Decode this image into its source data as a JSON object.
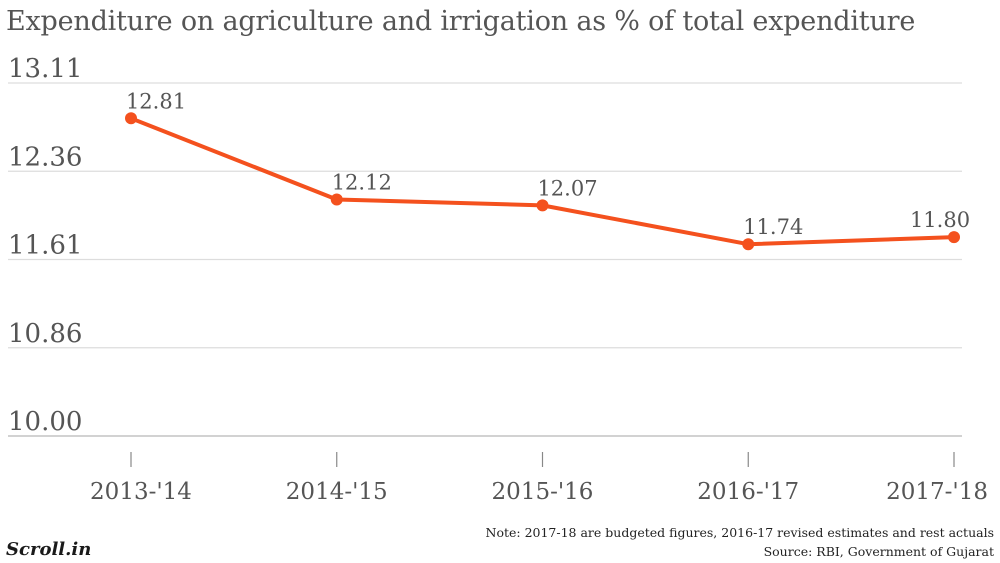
{
  "chart_data": {
    "type": "line",
    "title": "Expenditure on  agriculture and irrigation as % of  total expenditure",
    "categories": [
      "2013-'14",
      "2014-'15",
      "2015-'16",
      "2016-'17",
      "2017-'18"
    ],
    "series": [
      {
        "values": [
          12.81,
          12.12,
          12.07,
          11.74,
          11.8
        ],
        "labels": [
          "12.81",
          "12.12",
          "12.07",
          "11.74",
          "11.80"
        ]
      }
    ],
    "y_ticks": [
      "13.11",
      "12.36",
      "11.61",
      "10.86",
      "10.00"
    ],
    "ylim": [
      10.0,
      13.11
    ],
    "grid": true,
    "colors": {
      "line": "#f4511e",
      "grid": "#dddddd",
      "text": "#555555"
    }
  },
  "footer": {
    "note": "Note: 2017-18 are budgeted figures, 2016-17 revised estimates and rest actuals",
    "source": "Source: RBI, Government of Gujarat",
    "logo": "Scroll.in"
  }
}
